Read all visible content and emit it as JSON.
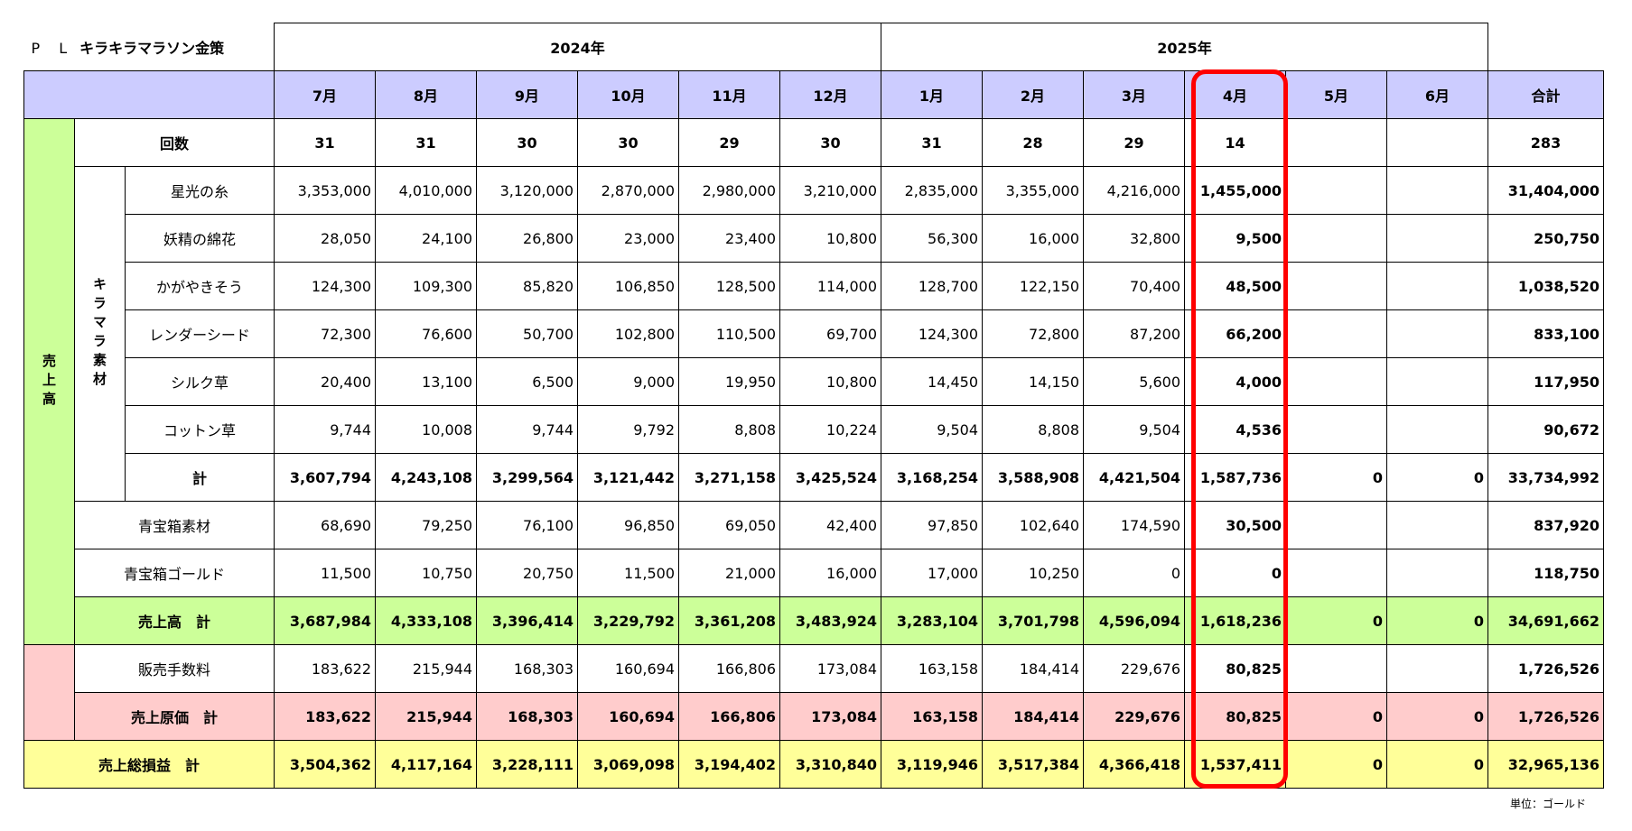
{
  "title": {
    "prefix": "P L",
    "name": "キラキラマラソン金策"
  },
  "years": [
    "2024年",
    "2025年"
  ],
  "months": [
    "7月",
    "8月",
    "9月",
    "10月",
    "11月",
    "12月",
    "1月",
    "2月",
    "3月",
    "4月",
    "5月",
    "6月"
  ],
  "total_label": "合計",
  "groups": {
    "sales": "売上高",
    "materials": "キラマラ素材"
  },
  "count_row": {
    "label": "回数",
    "values": [
      "31",
      "31",
      "30",
      "30",
      "29",
      "30",
      "31",
      "28",
      "29",
      "14",
      "",
      ""
    ],
    "total": "283"
  },
  "material_rows": [
    {
      "label": "星光の糸",
      "values": [
        "3,353,000",
        "4,010,000",
        "3,120,000",
        "2,870,000",
        "2,980,000",
        "3,210,000",
        "2,835,000",
        "3,355,000",
        "4,216,000",
        "1,455,000",
        "",
        ""
      ],
      "total": "31,404,000"
    },
    {
      "label": "妖精の綿花",
      "values": [
        "28,050",
        "24,100",
        "26,800",
        "23,000",
        "23,400",
        "10,800",
        "56,300",
        "16,000",
        "32,800",
        "9,500",
        "",
        ""
      ],
      "total": "250,750"
    },
    {
      "label": "かがやきそう",
      "values": [
        "124,300",
        "109,300",
        "85,820",
        "106,850",
        "128,500",
        "114,000",
        "128,700",
        "122,150",
        "70,400",
        "48,500",
        "",
        ""
      ],
      "total": "1,038,520"
    },
    {
      "label": "レンダーシード",
      "values": [
        "72,300",
        "76,600",
        "50,700",
        "102,800",
        "110,500",
        "69,700",
        "124,300",
        "72,800",
        "87,200",
        "66,200",
        "",
        ""
      ],
      "total": "833,100"
    },
    {
      "label": "シルク草",
      "values": [
        "20,400",
        "13,100",
        "6,500",
        "9,000",
        "19,950",
        "10,800",
        "14,450",
        "14,150",
        "5,600",
        "4,000",
        "",
        ""
      ],
      "total": "117,950"
    },
    {
      "label": "コットン草",
      "values": [
        "9,744",
        "10,008",
        "9,744",
        "9,792",
        "8,808",
        "10,224",
        "9,504",
        "8,808",
        "9,504",
        "4,536",
        "",
        ""
      ],
      "total": "90,672"
    }
  ],
  "material_subtotal": {
    "label": "計",
    "values": [
      "3,607,794",
      "4,243,108",
      "3,299,564",
      "3,121,442",
      "3,271,158",
      "3,425,524",
      "3,168,254",
      "3,588,908",
      "4,421,504",
      "1,587,736",
      "0",
      "0"
    ],
    "total": "33,734,992"
  },
  "chest_rows": [
    {
      "label": "青宝箱素材",
      "values": [
        "68,690",
        "79,250",
        "76,100",
        "96,850",
        "69,050",
        "42,400",
        "97,850",
        "102,640",
        "174,590",
        "30,500",
        "",
        ""
      ],
      "total": "837,920"
    },
    {
      "label": "青宝箱ゴールド",
      "values": [
        "11,500",
        "10,750",
        "20,750",
        "11,500",
        "21,000",
        "16,000",
        "17,000",
        "10,250",
        "0",
        "0",
        "",
        ""
      ],
      "total": "118,750"
    }
  ],
  "sales_total": {
    "label": "売上高　計",
    "values": [
      "3,687,984",
      "4,333,108",
      "3,396,414",
      "3,229,792",
      "3,361,208",
      "3,483,924",
      "3,283,104",
      "3,701,798",
      "4,596,094",
      "1,618,236",
      "0",
      "0"
    ],
    "total": "34,691,662"
  },
  "fee_row": {
    "label": "販売手数料",
    "values": [
      "183,622",
      "215,944",
      "168,303",
      "160,694",
      "166,806",
      "173,084",
      "163,158",
      "184,414",
      "229,676",
      "80,825",
      "",
      ""
    ],
    "total": "1,726,526"
  },
  "cost_total": {
    "label": "売上原価　計",
    "values": [
      "183,622",
      "215,944",
      "168,303",
      "160,694",
      "166,806",
      "173,084",
      "163,158",
      "184,414",
      "229,676",
      "80,825",
      "0",
      "0"
    ],
    "total": "1,726,526"
  },
  "gross_total": {
    "label": "売上総損益　計",
    "values": [
      "3,504,362",
      "4,117,164",
      "3,228,111",
      "3,069,098",
      "3,194,402",
      "3,310,840",
      "3,119,946",
      "3,517,384",
      "4,366,418",
      "1,537,411",
      "0",
      "0"
    ],
    "total": "32,965,136"
  },
  "unit_note": "単位：ゴールド",
  "colors": {
    "header": "#ccccff",
    "sales": "#ccff99",
    "cost": "#ffcccc",
    "gross": "#ffff99",
    "highlight": "#ff0000"
  }
}
